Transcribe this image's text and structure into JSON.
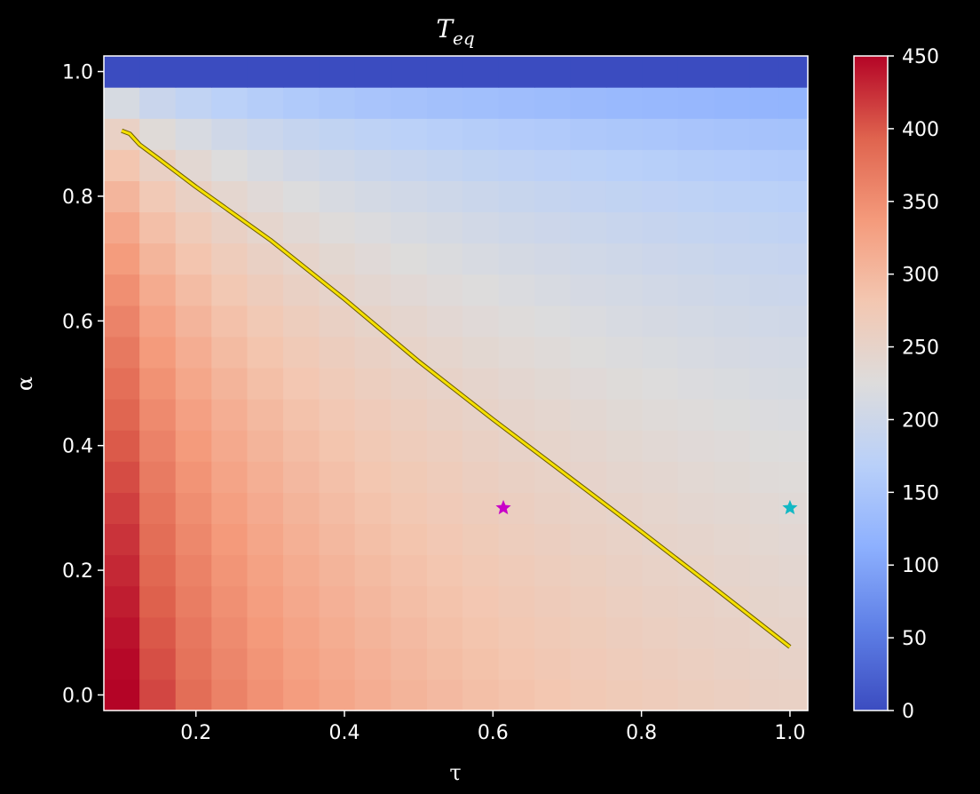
{
  "chart_data": {
    "type": "heatmap",
    "title": "T",
    "title_subscript": "eq",
    "xlabel": "τ",
    "ylabel": "α",
    "xlim": [
      0.076,
      1.024
    ],
    "ylim": [
      -0.025,
      1.025
    ],
    "x_ticks": [
      {
        "value": 0.2,
        "label": "0.2"
      },
      {
        "value": 0.4,
        "label": "0.4"
      },
      {
        "value": 0.6,
        "label": "0.6"
      },
      {
        "value": 0.8,
        "label": "0.8"
      },
      {
        "value": 1.0,
        "label": "1.0"
      }
    ],
    "y_ticks": [
      {
        "value": 0.0,
        "label": "0.0"
      },
      {
        "value": 0.2,
        "label": "0.2"
      },
      {
        "value": 0.4,
        "label": "0.4"
      },
      {
        "value": 0.6,
        "label": "0.6"
      },
      {
        "value": 0.8,
        "label": "0.8"
      },
      {
        "value": 1.0,
        "label": "1.0"
      }
    ],
    "grid": false,
    "colormap": "coolwarm",
    "colorbar": {
      "vmin": 0,
      "vmax": 450,
      "ticks": [
        {
          "value": 0,
          "label": "0"
        },
        {
          "value": 50,
          "label": "50"
        },
        {
          "value": 100,
          "label": "100"
        },
        {
          "value": 150,
          "label": "150"
        },
        {
          "value": 200,
          "label": "200"
        },
        {
          "value": 250,
          "label": "250"
        },
        {
          "value": 300,
          "label": "300"
        },
        {
          "value": 350,
          "label": "350"
        },
        {
          "value": 400,
          "label": "400"
        },
        {
          "value": 450,
          "label": "450"
        }
      ]
    },
    "x_values": [
      0.1,
      0.148,
      0.197,
      0.245,
      0.293,
      0.342,
      0.39,
      0.438,
      0.487,
      0.535,
      0.583,
      0.632,
      0.68,
      0.728,
      0.777,
      0.825,
      0.873,
      0.922,
      0.97,
      1.0
    ],
    "y_values": [
      0.0,
      0.05,
      0.1,
      0.15,
      0.2,
      0.25,
      0.3,
      0.35,
      0.4,
      0.45,
      0.5,
      0.55,
      0.6,
      0.65,
      0.7,
      0.75,
      0.8,
      0.85,
      0.9,
      0.95,
      1.0
    ],
    "contour": {
      "color": "#f5e000",
      "points": [
        [
          0.1,
          0.905
        ],
        [
          0.111,
          0.9
        ],
        [
          0.124,
          0.883
        ],
        [
          0.15,
          0.86
        ],
        [
          0.2,
          0.815
        ],
        [
          0.3,
          0.73
        ],
        [
          0.4,
          0.635
        ],
        [
          0.5,
          0.535
        ],
        [
          0.6,
          0.442
        ],
        [
          0.7,
          0.352
        ],
        [
          0.8,
          0.262
        ],
        [
          0.9,
          0.17
        ],
        [
          1.0,
          0.077
        ]
      ]
    },
    "markers": [
      {
        "x": 0.614,
        "y": 0.3,
        "color": "#c800c8",
        "shape": "star"
      },
      {
        "x": 1.0,
        "y": 0.3,
        "color": "#12b8c4",
        "shape": "star"
      }
    ]
  }
}
